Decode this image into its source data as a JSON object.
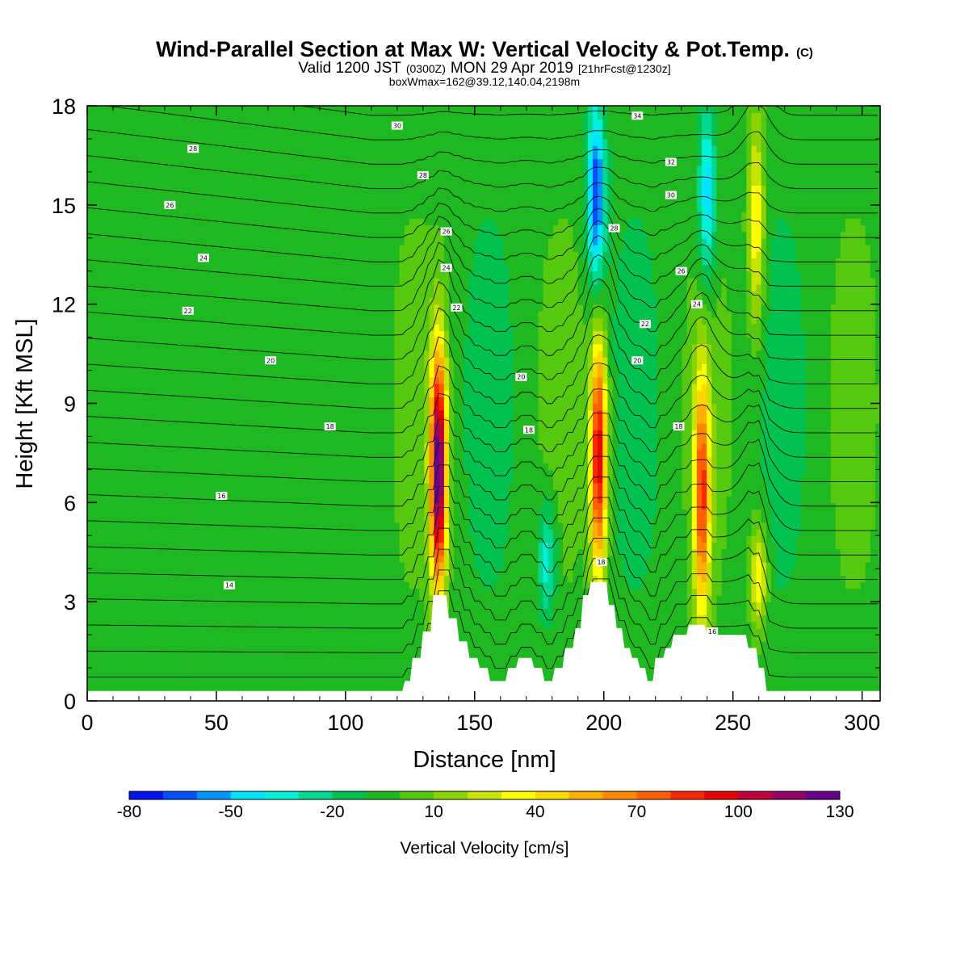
{
  "chart_data": {
    "type": "heatmap",
    "title": "Wind-Parallel Section at Max W: Vertical Velocity & Pot.Temp.",
    "title_mark": "(C)",
    "subtitle": {
      "prefix": "Valid 1200 JST",
      "utc": "(0300Z)",
      "date": "MON 29 Apr 2019",
      "fcst": "[21hrFcst@1230z]"
    },
    "box_info": "boxWmax=162@39.12,140.04,2198m",
    "xlabel": "Distance [nm]",
    "ylabel": "Height [Kft MSL]",
    "xlim": [
      0,
      307
    ],
    "ylim": [
      0,
      18
    ],
    "x_ticks": [
      "0",
      "50",
      "100",
      "150",
      "200",
      "250",
      "300"
    ],
    "y_ticks": [
      "0",
      "3",
      "6",
      "9",
      "12",
      "15",
      "18"
    ],
    "colorbar": {
      "label": "Vertical Velocity [cm/s]",
      "tick_labels": [
        "-80",
        "-50",
        "-20",
        "10",
        "40",
        "70",
        "100",
        "130"
      ],
      "levels": [
        -80,
        -70,
        -60,
        -50,
        -40,
        -30,
        -20,
        -10,
        0,
        10,
        20,
        30,
        40,
        50,
        60,
        70,
        80,
        90,
        100,
        110,
        120,
        130
      ],
      "colors": [
        "#0014f0",
        "#0050ff",
        "#0096ff",
        "#00e4ff",
        "#00f0d8",
        "#00d890",
        "#00c050",
        "#20b820",
        "#56c810",
        "#8cd200",
        "#c6e400",
        "#ffff00",
        "#ffd800",
        "#ffb000",
        "#ff8800",
        "#ff6000",
        "#ff2800",
        "#e60000",
        "#c0003c",
        "#960064",
        "#64008c"
      ]
    },
    "background_level": -5,
    "updraft_cores": [
      {
        "x": 136,
        "z_bottom": 3.2,
        "z_top": 10.8,
        "w_max": 130
      },
      {
        "x": 198,
        "z_bottom": 3.6,
        "z_top": 11.2,
        "w_max": 100
      },
      {
        "x": 238,
        "z_bottom": 2.3,
        "z_top": 10.2,
        "w_max": 80
      },
      {
        "x": 259,
        "z_bottom": 11,
        "z_top": 18,
        "w_max": 40
      },
      {
        "x": 260,
        "z_bottom": 2,
        "z_top": 5.5,
        "w_max": 40
      }
    ],
    "downdraft_cores": [
      {
        "x": 197,
        "z_bottom": 12.5,
        "z_top": 18,
        "w_min": -70
      },
      {
        "x": 240,
        "z_bottom": 12.5,
        "z_top": 18,
        "w_min": -50
      },
      {
        "x": 178,
        "z_bottom": 2.5,
        "z_top": 6,
        "w_min": -40
      }
    ],
    "theta_contour_labels": [
      {
        "x": 41,
        "z": 16.7,
        "text": "28"
      },
      {
        "x": 32,
        "z": 15.0,
        "text": "26"
      },
      {
        "x": 45,
        "z": 13.4,
        "text": "24"
      },
      {
        "x": 39,
        "z": 11.8,
        "text": "22"
      },
      {
        "x": 71,
        "z": 10.3,
        "text": "20"
      },
      {
        "x": 94,
        "z": 8.3,
        "text": "18"
      },
      {
        "x": 52,
        "z": 6.2,
        "text": "16"
      },
      {
        "x": 55,
        "z": 3.5,
        "text": "14"
      },
      {
        "x": 120,
        "z": 17.4,
        "text": "30"
      },
      {
        "x": 130,
        "z": 15.9,
        "text": "28"
      },
      {
        "x": 139,
        "z": 14.2,
        "text": "26"
      },
      {
        "x": 139,
        "z": 13.1,
        "text": "24"
      },
      {
        "x": 143,
        "z": 11.9,
        "text": "22"
      },
      {
        "x": 168,
        "z": 9.8,
        "text": "20"
      },
      {
        "x": 171,
        "z": 8.2,
        "text": "18"
      },
      {
        "x": 213,
        "z": 17.7,
        "text": "34"
      },
      {
        "x": 226,
        "z": 16.3,
        "text": "32"
      },
      {
        "x": 226,
        "z": 15.3,
        "text": "30"
      },
      {
        "x": 204,
        "z": 14.3,
        "text": "28"
      },
      {
        "x": 230,
        "z": 13.0,
        "text": "26"
      },
      {
        "x": 236,
        "z": 12.0,
        "text": "24"
      },
      {
        "x": 216,
        "z": 11.4,
        "text": "22"
      },
      {
        "x": 213,
        "z": 10.3,
        "text": "20"
      },
      {
        "x": 229,
        "z": 8.3,
        "text": "18"
      },
      {
        "x": 199,
        "z": 4.2,
        "text": "18"
      },
      {
        "x": 242,
        "z": 2.1,
        "text": "16"
      }
    ],
    "terrain_profile": [
      [
        0,
        0.3
      ],
      [
        122,
        0.3
      ],
      [
        123,
        0.6
      ],
      [
        125,
        0.6
      ],
      [
        126,
        1.3
      ],
      [
        129,
        1.3
      ],
      [
        130,
        2.1
      ],
      [
        133,
        2.1
      ],
      [
        134,
        3.2
      ],
      [
        139,
        3.2
      ],
      [
        140,
        2.5
      ],
      [
        143,
        2.5
      ],
      [
        144,
        1.8
      ],
      [
        147,
        1.8
      ],
      [
        148,
        1.3
      ],
      [
        151,
        1.3
      ],
      [
        152,
        1.0
      ],
      [
        155,
        1.0
      ],
      [
        156,
        0.6
      ],
      [
        162,
        0.6
      ],
      [
        163,
        1.0
      ],
      [
        166,
        1.0
      ],
      [
        167,
        1.3
      ],
      [
        172,
        1.3
      ],
      [
        173,
        1.0
      ],
      [
        176,
        1.0
      ],
      [
        177,
        0.6
      ],
      [
        180,
        0.6
      ],
      [
        181,
        1.0
      ],
      [
        184,
        1.0
      ],
      [
        185,
        1.6
      ],
      [
        188,
        1.6
      ],
      [
        189,
        2.2
      ],
      [
        191,
        2.2
      ],
      [
        192,
        3.2
      ],
      [
        194,
        3.2
      ],
      [
        195,
        3.6
      ],
      [
        201,
        3.6
      ],
      [
        202,
        2.9
      ],
      [
        204,
        2.9
      ],
      [
        205,
        2.2
      ],
      [
        207,
        2.2
      ],
      [
        208,
        1.6
      ],
      [
        210,
        1.6
      ],
      [
        211,
        1.3
      ],
      [
        213,
        1.3
      ],
      [
        214,
        1.0
      ],
      [
        216,
        1.0
      ],
      [
        217,
        0.6
      ],
      [
        219,
        0.6
      ],
      [
        220,
        1.3
      ],
      [
        223,
        1.3
      ],
      [
        224,
        1.6
      ],
      [
        226,
        1.6
      ],
      [
        227,
        2.0
      ],
      [
        232,
        2.0
      ],
      [
        233,
        2.3
      ],
      [
        239,
        2.3
      ],
      [
        240,
        2.0
      ],
      [
        255,
        2.0
      ],
      [
        256,
        1.6
      ],
      [
        259,
        1.6
      ],
      [
        260,
        1.0
      ],
      [
        262,
        1.0
      ],
      [
        263,
        0.3
      ],
      [
        307,
        0.3
      ]
    ]
  }
}
